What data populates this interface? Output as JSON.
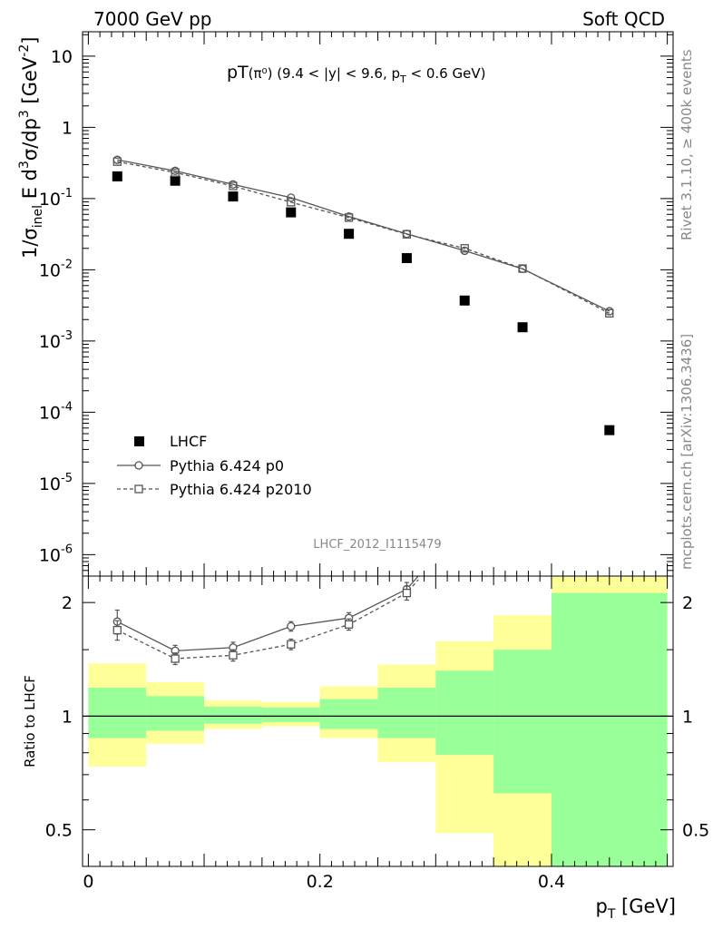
{
  "header": {
    "left": "7000 GeV pp",
    "right": "Soft QCD"
  },
  "side_labels": {
    "rivet": "Rivet 3.1.10, ≥ 400k events",
    "mcplots": "mcplots.cern.ch [arXiv:1306.3436]"
  },
  "chart_data": [
    {
      "type": "scatter",
      "title": "pT(π⁰) (9.4 < |y| < 9.6, p_T < 0.6 GeV)",
      "title_parts": {
        "main": "pT",
        "particle": "(π⁰)",
        "cut1": " (9.4 < |y| < 9.6, p",
        "cut_sub": "T",
        "cut2": " < 0.6 GeV)"
      },
      "ylabel": "1/σ_inel E d³σ/dp³ [GeV⁻²]",
      "ylabel_parts": {
        "a": "1/σ",
        "a_sub": "inel",
        "b": " E d",
        "b_sup": "3",
        "c": "σ/dp",
        "c_sup": "3",
        "d": " [GeV",
        "d_sup": "-2",
        "e": "]"
      },
      "yscale": "log",
      "ylim": [
        5e-07,
        22
      ],
      "xlim": [
        -0.005,
        0.505
      ],
      "ytick_labels": [
        {
          "value": 10,
          "base": "10",
          "exp": ""
        },
        {
          "value": 1,
          "base": "1",
          "exp": ""
        },
        {
          "value": 0.1,
          "base": "10",
          "exp": "-1"
        },
        {
          "value": 0.01,
          "base": "10",
          "exp": "-2"
        },
        {
          "value": 0.001,
          "base": "10",
          "exp": "-3"
        },
        {
          "value": 0.0001,
          "base": "10",
          "exp": "-4"
        },
        {
          "value": 1e-05,
          "base": "10",
          "exp": "-5"
        },
        {
          "value": 1e-06,
          "base": "10",
          "exp": "-6"
        }
      ],
      "watermark": "LHCF_2012_I1115479",
      "legend_position": "lower-left",
      "series": [
        {
          "name": "LHCF",
          "marker": "filled-square",
          "color": "#000000",
          "x": [
            0.025,
            0.075,
            0.125,
            0.175,
            0.225,
            0.275,
            0.325,
            0.375,
            0.45
          ],
          "y": [
            0.205,
            0.178,
            0.107,
            0.064,
            0.032,
            0.0146,
            0.0037,
            0.00156,
            5.6e-05
          ]
        },
        {
          "name": "Pythia 6.424 p0",
          "marker": "open-circle",
          "line": "solid",
          "color": "#555555",
          "x": [
            0.025,
            0.075,
            0.125,
            0.175,
            0.225,
            0.275,
            0.325,
            0.375,
            0.45
          ],
          "y": [
            0.35,
            0.245,
            0.158,
            0.103,
            0.056,
            0.032,
            0.0185,
            0.0103,
            0.00262
          ]
        },
        {
          "name": "Pythia 6.424 p2010",
          "marker": "open-square",
          "line": "dashed",
          "color": "#555555",
          "x": [
            0.025,
            0.075,
            0.125,
            0.175,
            0.225,
            0.275,
            0.325,
            0.375,
            0.45
          ],
          "y": [
            0.33,
            0.232,
            0.15,
            0.089,
            0.054,
            0.0315,
            0.02,
            0.0104,
            0.00245
          ]
        }
      ]
    },
    {
      "type": "scatter",
      "ylabel": "Ratio to LHCF",
      "xlabel": "p_T [GeV]",
      "xlabel_parts": {
        "a": "p",
        "sub": "T",
        "b": " [GeV]"
      },
      "yscale": "log",
      "ylim": [
        0.4,
        2.35
      ],
      "xlim": [
        -0.005,
        0.505
      ],
      "xticks": [
        0,
        0.2,
        0.4
      ],
      "xtick_labels": [
        "0",
        "0.2",
        "0.4"
      ],
      "yticks": [
        0.5,
        1,
        2
      ],
      "ytick_labels": [
        "0.5",
        "1",
        "2"
      ],
      "bands": {
        "bins": [
          [
            0.0,
            0.05
          ],
          [
            0.05,
            0.1
          ],
          [
            0.1,
            0.15
          ],
          [
            0.15,
            0.2
          ],
          [
            0.2,
            0.25
          ],
          [
            0.25,
            0.3
          ],
          [
            0.3,
            0.35
          ],
          [
            0.35,
            0.4
          ],
          [
            0.4,
            0.5
          ]
        ],
        "yellow": {
          "color": "#ffff99",
          "low": [
            0.735,
            0.845,
            0.925,
            0.94,
            0.875,
            0.755,
            0.49,
            0.38,
            0.38
          ],
          "high": [
            1.38,
            1.23,
            1.1,
            1.09,
            1.2,
            1.37,
            1.58,
            1.85,
            2.6
          ]
        },
        "green": {
          "color": "#99ff99",
          "low": [
            0.875,
            0.915,
            0.955,
            0.965,
            0.925,
            0.875,
            0.79,
            0.625,
            0.38
          ],
          "high": [
            1.19,
            1.13,
            1.06,
            1.055,
            1.11,
            1.19,
            1.32,
            1.5,
            2.12
          ]
        }
      },
      "series": [
        {
          "name": "Pythia 6.424 p0",
          "marker": "open-circle",
          "line": "solid",
          "color": "#555555",
          "x": [
            0.025,
            0.075,
            0.125,
            0.175,
            0.225,
            0.275,
            0.285
          ],
          "y": [
            1.78,
            1.49,
            1.52,
            1.73,
            1.82,
            2.17,
            2.35
          ],
          "err": [
            0.13,
            0.05,
            0.05,
            0.05,
            0.06,
            0.09,
            0
          ]
        },
        {
          "name": "Pythia 6.424 p2010",
          "marker": "open-square",
          "line": "dashed",
          "color": "#555555",
          "x": [
            0.025,
            0.075,
            0.125,
            0.175,
            0.225,
            0.275,
            0.285
          ],
          "y": [
            1.69,
            1.42,
            1.45,
            1.55,
            1.75,
            2.12,
            2.3
          ],
          "err": [
            0.1,
            0.05,
            0.05,
            0.05,
            0.06,
            0.09,
            0
          ]
        }
      ]
    }
  ]
}
